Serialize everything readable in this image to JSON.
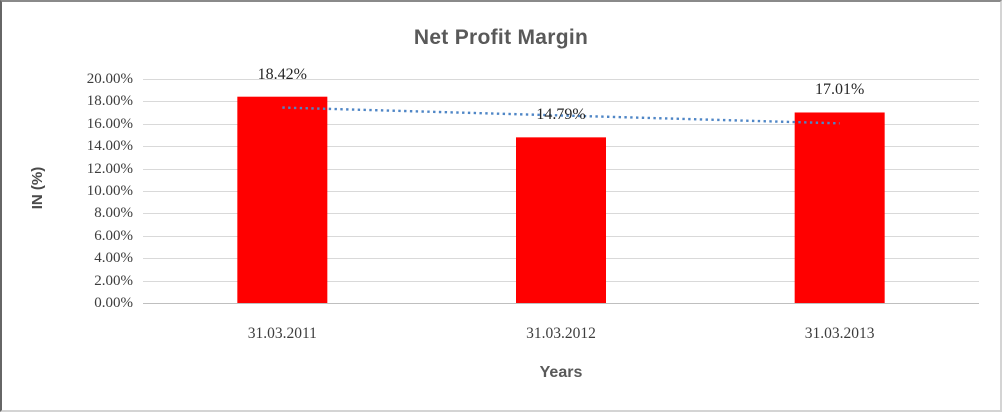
{
  "chart_data": {
    "type": "bar",
    "title": "Net Profit Margin",
    "xlabel": "Years",
    "ylabel": "IN (%)",
    "categories": [
      "31.03.2011",
      "31.03.2012",
      "31.03.2013"
    ],
    "values": [
      18.42,
      14.79,
      17.01
    ],
    "data_labels": [
      "18.42%",
      "14.79%",
      "17.01%"
    ],
    "ylim": [
      0,
      20
    ],
    "ytick_step": 2,
    "ytick_labels": [
      "0.00%",
      "2.00%",
      "4.00%",
      "6.00%",
      "8.00%",
      "10.00%",
      "12.00%",
      "14.00%",
      "16.00%",
      "18.00%",
      "20.00%"
    ],
    "grid": true,
    "legend_position": "none",
    "trendline": {
      "type": "linear",
      "style": "dotted",
      "start_value": 17.45,
      "end_value": 16.04
    },
    "colors": {
      "bar": "#FF0000",
      "trendline": "#4F86C6",
      "gridline": "#D9D9D9",
      "axis_line": "#BFBFBF",
      "title_text": "#595959",
      "tick_text": "#3D3D3D",
      "data_label_text": "#262626"
    }
  }
}
